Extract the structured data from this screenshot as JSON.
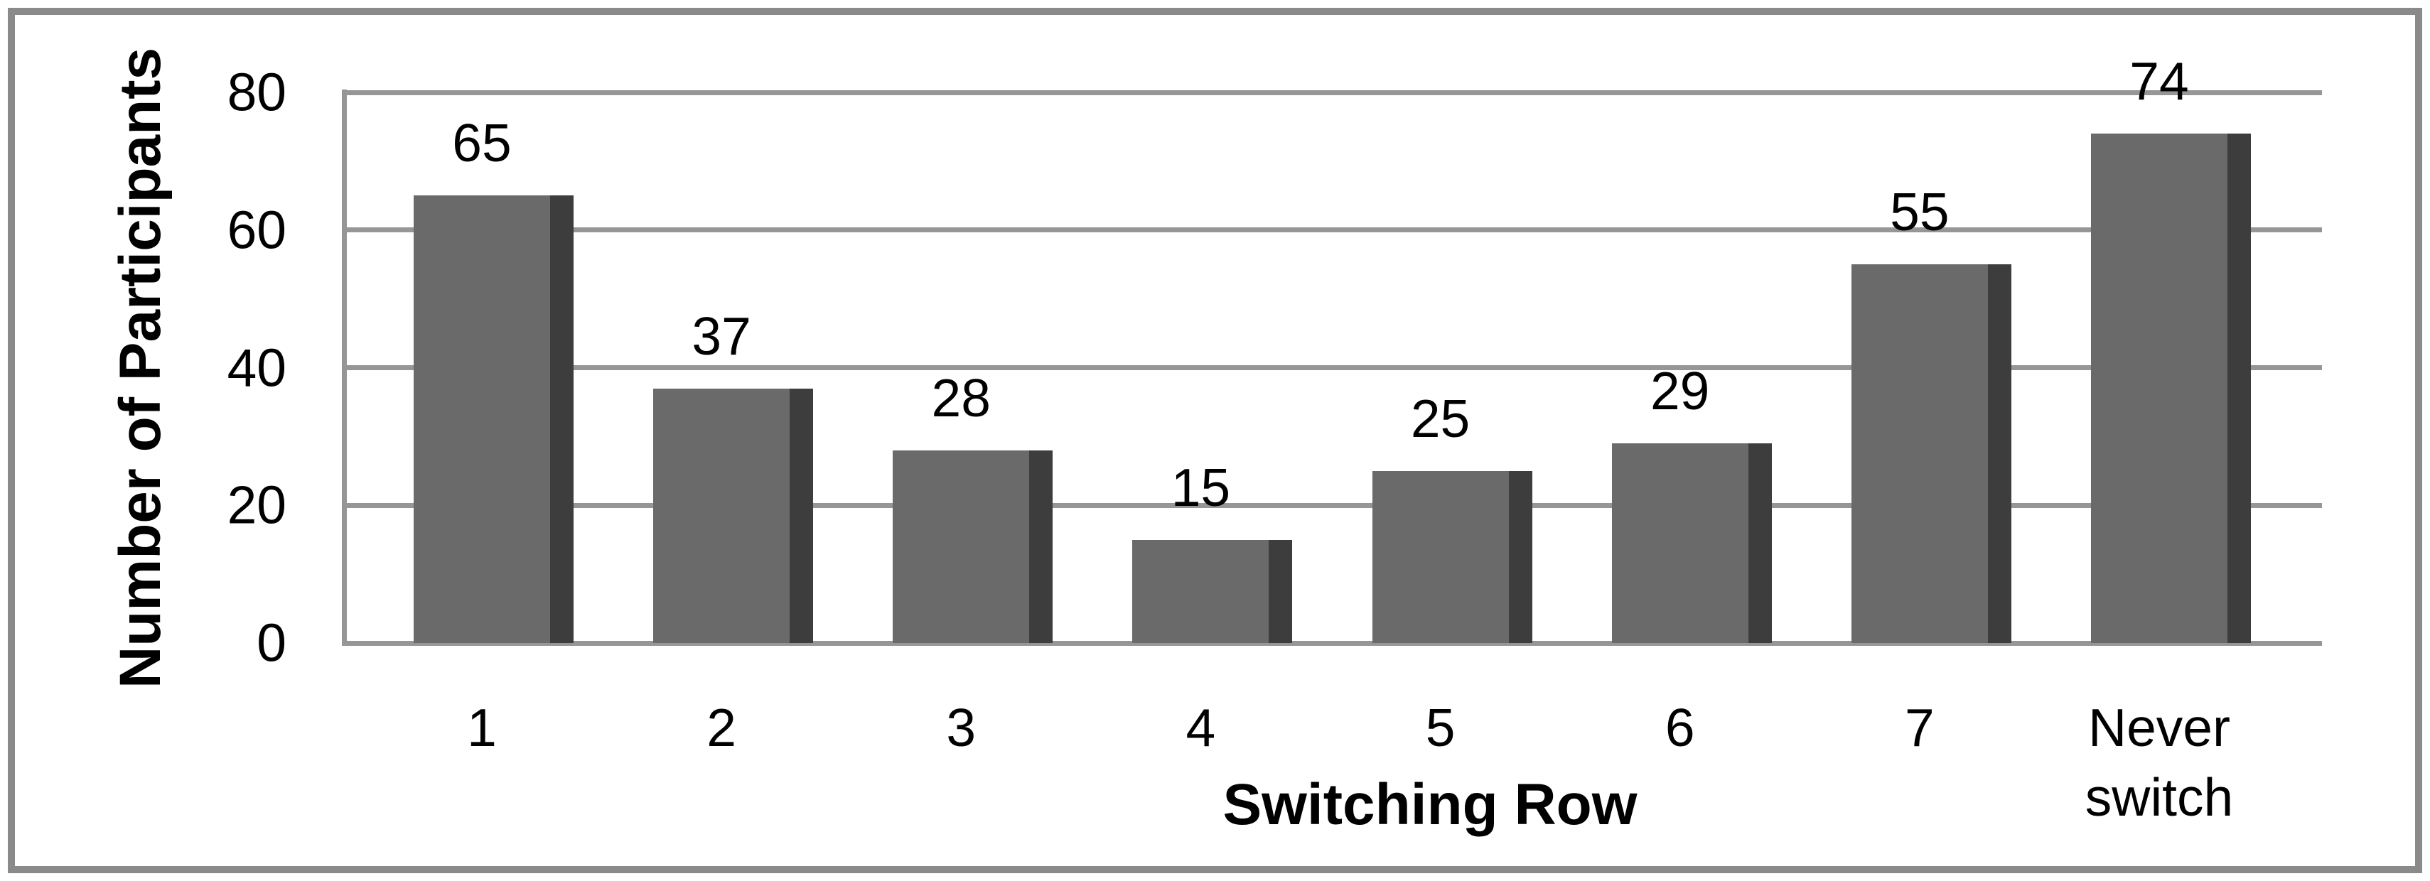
{
  "figure": {
    "background": "#ffffff",
    "border_color": "#8a8a8a"
  },
  "chart_data": {
    "type": "bar",
    "categories": [
      "1",
      "2",
      "3",
      "4",
      "5",
      "6",
      "7",
      "Never switch"
    ],
    "values": [
      65,
      37,
      28,
      15,
      25,
      29,
      55,
      74
    ],
    "title": "",
    "xlabel": "Switching Row",
    "ylabel": "Number of Participants",
    "ylim": [
      0,
      80
    ],
    "yticks": [
      0,
      20,
      40,
      60,
      80
    ],
    "grid": true,
    "legend": false,
    "data_labels": true,
    "bar_color": "#6a6a6a",
    "bar_side_color": "#3d3d3d",
    "gridline_color": "#969696",
    "axis_line_color": "#969696",
    "text_color": "#000000"
  }
}
